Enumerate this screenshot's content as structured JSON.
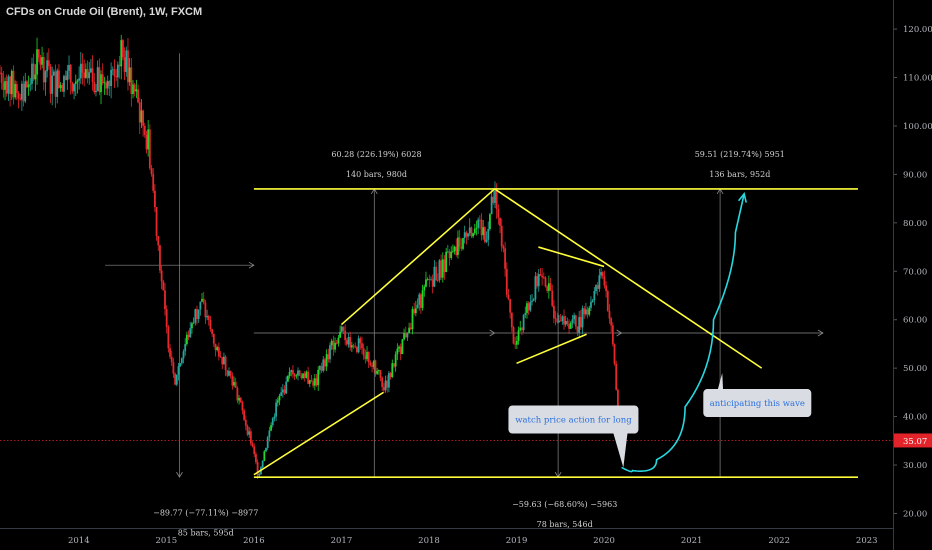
{
  "header": {
    "title": "CFDs on Crude Oil (Brent), 1W, FXCM"
  },
  "colors": {
    "up": "#26a69a",
    "up_bright": "#22d62a",
    "down": "#e8292c",
    "trend_line": "#ffff3a",
    "callout_arrow": "#29d7e0",
    "measure_line": "#8a8a8a",
    "price_tag": "#e2232a",
    "annotation_bg": "#d9dde3",
    "annotation_text": "#2b6fe0",
    "axis_text": "#b2b5be"
  },
  "chart_data": {
    "type": "candlestick",
    "symbol": "CFDs on Crude Oil (Brent)",
    "interval": "1W",
    "source": "FXCM",
    "x_ticks": [
      "2014",
      "2015",
      "2016",
      "2017",
      "2018",
      "2019",
      "2020",
      "2021",
      "2022",
      "2023"
    ],
    "y_ticks": [
      "120.00",
      "110.00",
      "100.00",
      "90.00",
      "80.00",
      "70.00",
      "60.00",
      "50.00",
      "40.00",
      "30.00",
      "20.00"
    ],
    "ylim": [
      17,
      126
    ],
    "xlim": [
      2013.1,
      2023.3
    ],
    "last_price": "35.07",
    "last_price_value": 35.07,
    "price_path": [
      [
        2013.1,
        111
      ],
      [
        2013.35,
        106
      ],
      [
        2013.55,
        114
      ],
      [
        2013.7,
        109
      ],
      [
        2013.95,
        110
      ],
      [
        2014.25,
        109
      ],
      [
        2014.5,
        115
      ],
      [
        2014.65,
        106
      ],
      [
        2014.8,
        96
      ],
      [
        2015.0,
        58
      ],
      [
        2015.1,
        48
      ],
      [
        2015.3,
        60
      ],
      [
        2015.4,
        64
      ],
      [
        2015.55,
        55
      ],
      [
        2015.75,
        48
      ],
      [
        2015.95,
        36
      ],
      [
        2016.05,
        28
      ],
      [
        2016.25,
        42
      ],
      [
        2016.45,
        50
      ],
      [
        2016.7,
        47
      ],
      [
        2016.9,
        55
      ],
      [
        2017.0,
        57
      ],
      [
        2017.25,
        54
      ],
      [
        2017.5,
        46
      ],
      [
        2017.75,
        58
      ],
      [
        2018.0,
        68
      ],
      [
        2018.3,
        74
      ],
      [
        2018.45,
        79
      ],
      [
        2018.65,
        78
      ],
      [
        2018.75,
        86
      ],
      [
        2018.85,
        73
      ],
      [
        2018.95,
        57
      ],
      [
        2019.0,
        55
      ],
      [
        2019.15,
        64
      ],
      [
        2019.3,
        71
      ],
      [
        2019.42,
        62
      ],
      [
        2019.55,
        60
      ],
      [
        2019.7,
        59
      ],
      [
        2019.85,
        64
      ],
      [
        2020.0,
        69
      ],
      [
        2020.08,
        58
      ],
      [
        2020.12,
        51
      ],
      [
        2020.16,
        39
      ],
      [
        2020.19,
        35.07
      ]
    ],
    "overlays": [
      {
        "kind": "horizontal-line",
        "y": 87,
        "x_from": 2016.0,
        "x_to": 2022.9
      },
      {
        "kind": "horizontal-line",
        "y": 27.5,
        "x_from": 2016.0,
        "x_to": 2022.9
      },
      {
        "kind": "trend-line",
        "from": [
          2016.0,
          28
        ],
        "to": [
          2017.48,
          45
        ]
      },
      {
        "kind": "trend-line",
        "from": [
          2017.0,
          59
        ],
        "to": [
          2018.75,
          87
        ]
      },
      {
        "kind": "trend-line",
        "from": [
          2018.75,
          87
        ],
        "to": [
          2021.8,
          50
        ]
      },
      {
        "kind": "trend-line",
        "from": [
          2019.25,
          75
        ],
        "to": [
          2020.0,
          71
        ]
      },
      {
        "kind": "trend-line",
        "from": [
          2019.0,
          51
        ],
        "to": [
          2019.8,
          57
        ]
      }
    ],
    "measurements": [
      {
        "from_x": 2014.3,
        "to_x": 2016.0,
        "from_y": 115,
        "to_y": 27.5,
        "label1": "−89.77 (−77.11%) −8977",
        "label2": "85 bars, 595d",
        "label_anchor": [
          2015.45,
          19.6
        ]
      },
      {
        "from_x": 2016.0,
        "to_x": 2018.75,
        "from_y": 27.5,
        "to_y": 87,
        "label1": "60.28 (226.19%) 6028",
        "label2": "140 bars, 980d",
        "label_anchor": [
          2017.4,
          93.6
        ]
      },
      {
        "from_x": 2018.75,
        "to_x": 2020.2,
        "from_y": 87,
        "to_y": 27.5,
        "label1": "−59.63 (−68.60%) −5963",
        "label2": "78 bars, 546d",
        "label_anchor": [
          2019.55,
          21.3
        ]
      },
      {
        "from_x": 2020.15,
        "to_x": 2022.5,
        "from_y": 27.5,
        "to_y": 87,
        "label1": "59.51 (219.74%) 5951",
        "label2": "136 bars, 952d",
        "label_anchor": [
          2021.55,
          93.6
        ]
      }
    ],
    "projection": [
      [
        2020.2,
        29.5
      ],
      [
        2020.45,
        28.2
      ],
      [
        2020.75,
        34
      ],
      [
        2021.1,
        50
      ],
      [
        2021.4,
        70
      ],
      [
        2021.6,
        86
      ]
    ],
    "annotations": [
      {
        "text": "watch price action for long",
        "anchor": [
          2019.65,
          39.4
        ]
      },
      {
        "text": "anticipating this wave",
        "anchor": [
          2021.75,
          42.8
        ]
      }
    ]
  }
}
